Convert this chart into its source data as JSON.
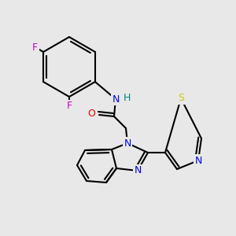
{
  "background_color": "#e8e8e8",
  "bond_color": "#000000",
  "bond_width": 1.5,
  "figsize": [
    3.0,
    3.0
  ],
  "dpi": 100,
  "colors": {
    "F": "#cc00cc",
    "N": "#0000ff",
    "O": "#ff0000",
    "S": "#cccc00",
    "H": "#008080",
    "C": "#000000"
  }
}
